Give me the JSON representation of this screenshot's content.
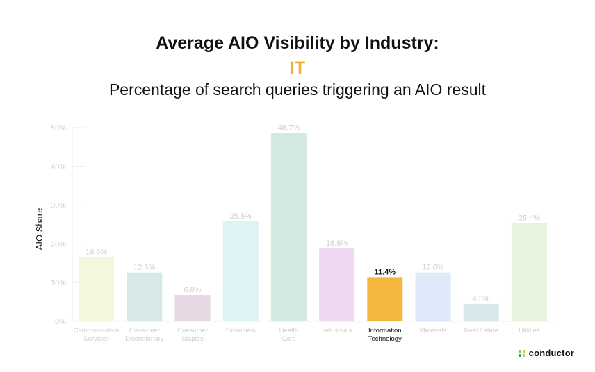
{
  "header": {
    "title": "Average AIO Visibility by Industry:",
    "highlight": "IT",
    "subtitle": "Percentage of search queries triggering an AIO result"
  },
  "logo": {
    "text": "conductor",
    "icon": "conductor-logo-icon"
  },
  "colors": {
    "highlight": "#f2b134",
    "axis_text": "#cfcfcf",
    "label_muted": "#cfcfcf",
    "label_active": "#111111"
  },
  "chart_data": {
    "type": "bar",
    "ylabel": "AIO Share",
    "ylim": [
      0,
      50
    ],
    "yticks": [
      0,
      10,
      20,
      30,
      40,
      50
    ],
    "ytick_labels": [
      "0%",
      "10%",
      "20%",
      "30%",
      "40%",
      "50%"
    ],
    "grid": false,
    "categories": [
      [
        "Communication",
        "Services"
      ],
      [
        "Consumer",
        "Discretionary"
      ],
      [
        "Consumer",
        "Staples"
      ],
      [
        "Financials"
      ],
      [
        "Health",
        "Care"
      ],
      [
        "Industrials"
      ],
      [
        "Information",
        "Technology"
      ],
      [
        "Materials"
      ],
      [
        "Real Estate"
      ],
      [
        "Utilities"
      ]
    ],
    "values": [
      16.6,
      12.6,
      6.8,
      25.8,
      48.7,
      18.8,
      11.4,
      12.6,
      4.5,
      25.4
    ],
    "value_labels": [
      "16.6%",
      "12.6%",
      "6.8%",
      "25.8%",
      "48.7%",
      "18.8%",
      "11.4%",
      "12.6%",
      "4.5%",
      "25.4%"
    ],
    "bar_colors": [
      "#f3f8dc",
      "#d6e9e6",
      "#e7d8e4",
      "#ddf3f4",
      "#d4e9e0",
      "#efd9f1",
      "#f4b63f",
      "#dde9f8",
      "#d7e7ea",
      "#e7f3dc"
    ],
    "highlighted_index": 6
  }
}
